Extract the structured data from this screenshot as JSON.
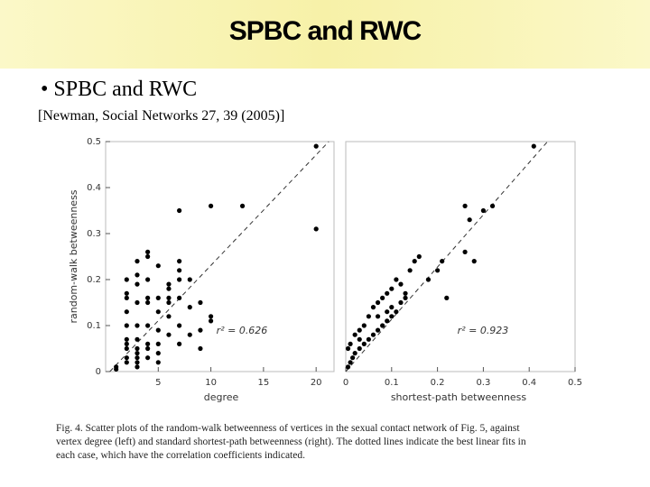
{
  "slide": {
    "title": "SPBC and RWC",
    "bullet": "SPBC and RWC",
    "citation": "[Newman, Social Networks 27, 39 (2005)]",
    "caption": [
      "Fig. 4. Scatter plots of the random-walk betweenness of vertices in the sexual contact network of Fig. 5, against",
      "vertex degree (left) and standard shortest-path betweenness (right). The dotted lines indicate the best linear fits in",
      "each case, which have the correlation coefficients indicated."
    ]
  },
  "chart_data": [
    {
      "type": "scatter",
      "xlabel": "degree",
      "ylabel": "random-walk betweenness",
      "annotation": "r² = 0.626",
      "color": "#000000",
      "xlim": [
        0,
        21.7
      ],
      "ylim": [
        0,
        0.5
      ],
      "xticks": [
        5,
        10,
        15,
        20
      ],
      "yticks": [
        0,
        0.1,
        0.2,
        0.3,
        0.4,
        0.5
      ],
      "x": [
        1,
        1,
        2,
        2,
        2,
        2,
        2,
        2,
        2,
        2,
        2,
        2,
        3,
        3,
        3,
        3,
        3,
        3,
        3,
        3,
        3,
        3,
        3,
        4,
        4,
        4,
        4,
        4,
        4,
        4,
        4,
        4,
        5,
        5,
        5,
        5,
        5,
        5,
        5,
        6,
        6,
        6,
        6,
        6,
        6,
        7,
        7,
        7,
        7,
        7,
        7,
        7,
        8,
        8,
        8,
        9,
        9,
        9,
        10,
        10,
        10,
        13,
        20,
        20
      ],
      "values": [
        0.005,
        0.01,
        0.02,
        0.03,
        0.05,
        0.06,
        0.07,
        0.1,
        0.13,
        0.16,
        0.17,
        0.2,
        0.01,
        0.02,
        0.03,
        0.04,
        0.05,
        0.07,
        0.1,
        0.15,
        0.19,
        0.21,
        0.24,
        0.03,
        0.05,
        0.06,
        0.1,
        0.15,
        0.16,
        0.2,
        0.25,
        0.26,
        0.02,
        0.04,
        0.06,
        0.09,
        0.13,
        0.16,
        0.23,
        0.08,
        0.12,
        0.15,
        0.16,
        0.18,
        0.19,
        0.06,
        0.1,
        0.16,
        0.2,
        0.22,
        0.24,
        0.35,
        0.08,
        0.14,
        0.2,
        0.05,
        0.09,
        0.15,
        0.11,
        0.12,
        0.36,
        0.36,
        0.31,
        0.49
      ],
      "fit": {
        "x": [
          0.4,
          21.2
        ],
        "y": [
          0,
          0.5
        ]
      }
    },
    {
      "type": "scatter",
      "xlabel": "shortest-path betweenness",
      "annotation": "r² = 0.923",
      "color": "#000000",
      "xlim": [
        0,
        0.5
      ],
      "ylim": [
        0,
        0.5
      ],
      "xticks": [
        0,
        0.1,
        0.2,
        0.3,
        0.4,
        0.5
      ],
      "x": [
        0.005,
        0.01,
        0.015,
        0.02,
        0.03,
        0.04,
        0.05,
        0.06,
        0.07,
        0.08,
        0.09,
        0.1,
        0.11,
        0.12,
        0.005,
        0.01,
        0.02,
        0.03,
        0.04,
        0.05,
        0.06,
        0.07,
        0.08,
        0.09,
        0.1,
        0.11,
        0.12,
        0.13,
        0.14,
        0.15,
        0.16,
        0.13,
        0.18,
        0.2,
        0.21,
        0.22,
        0.26,
        0.26,
        0.27,
        0.28,
        0.3,
        0.32,
        0.41,
        0.1,
        0.09,
        0.03,
        0.07
      ],
      "values": [
        0.01,
        0.02,
        0.03,
        0.04,
        0.05,
        0.06,
        0.07,
        0.08,
        0.09,
        0.1,
        0.11,
        0.12,
        0.13,
        0.15,
        0.05,
        0.06,
        0.08,
        0.09,
        0.1,
        0.12,
        0.14,
        0.15,
        0.16,
        0.17,
        0.18,
        0.2,
        0.19,
        0.17,
        0.22,
        0.24,
        0.25,
        0.16,
        0.2,
        0.22,
        0.24,
        0.16,
        0.26,
        0.36,
        0.33,
        0.24,
        0.35,
        0.36,
        0.49,
        0.14,
        0.13,
        0.07,
        0.12
      ],
      "fit": {
        "x": [
          0,
          0.44
        ],
        "y": [
          0,
          0.5
        ]
      }
    }
  ]
}
